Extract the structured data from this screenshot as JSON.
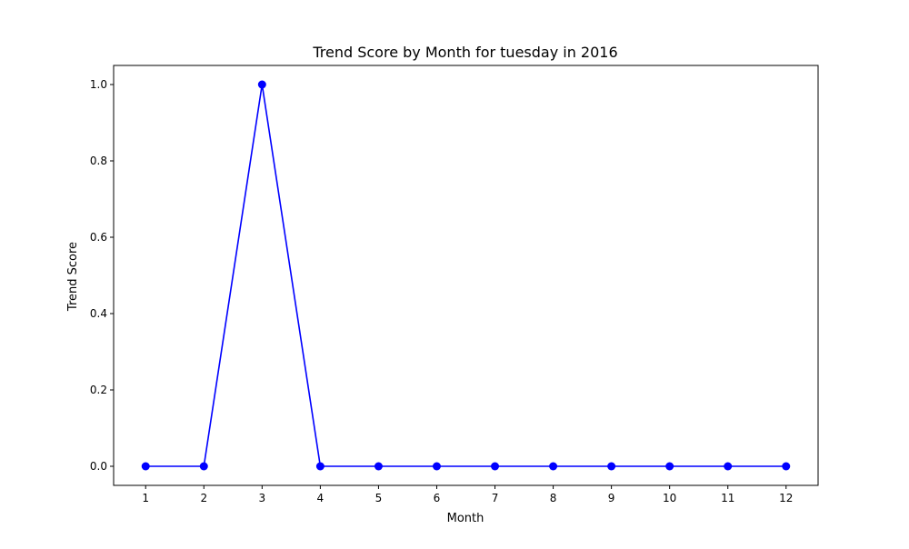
{
  "chart_data": {
    "type": "line",
    "title": "Trend Score by Month for tuesday in 2016",
    "xlabel": "Month",
    "ylabel": "Trend Score",
    "x": [
      1,
      2,
      3,
      4,
      5,
      6,
      7,
      8,
      9,
      10,
      11,
      12
    ],
    "series": [
      {
        "values": [
          0,
          0,
          1,
          0,
          0,
          0,
          0,
          0,
          0,
          0,
          0,
          0
        ],
        "color": "#0000ff",
        "marker": "circle"
      }
    ],
    "xlim": [
      0.45,
      12.55
    ],
    "ylim": [
      -0.05,
      1.05
    ],
    "xticks": [
      1,
      2,
      3,
      4,
      5,
      6,
      7,
      8,
      9,
      10,
      11,
      12
    ],
    "yticks": [
      0.0,
      0.2,
      0.4,
      0.6,
      0.8,
      1.0
    ],
    "ytick_labels": [
      "0.0",
      "0.2",
      "0.4",
      "0.6",
      "0.8",
      "1.0"
    ],
    "grid": false,
    "legend": "none"
  }
}
